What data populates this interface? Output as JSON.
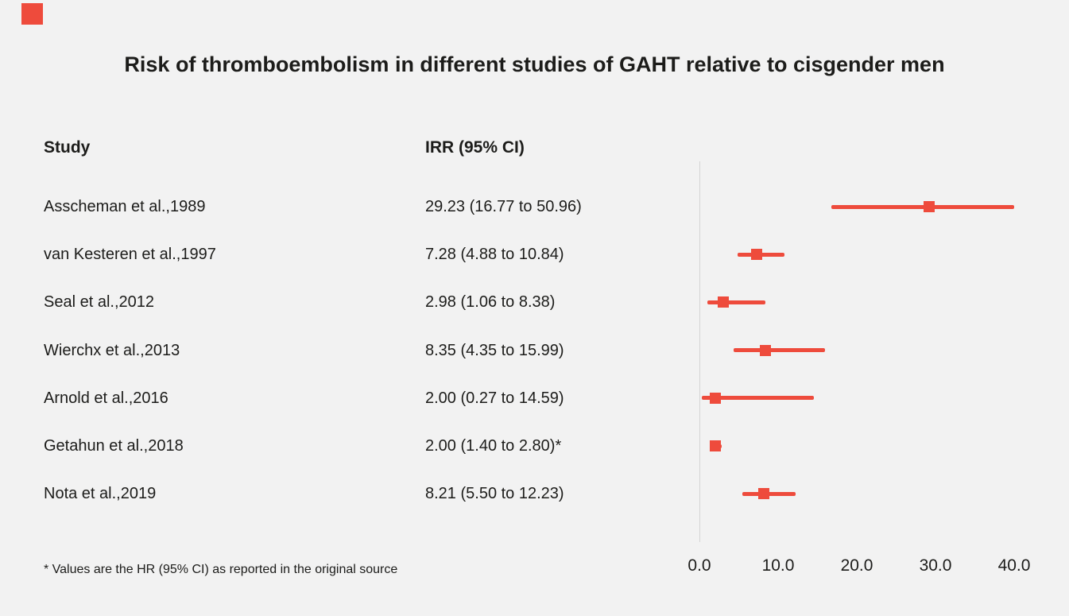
{
  "page": {
    "title": "Risk of thromboembolism in different studies of GAHT relative to cisgender men",
    "footnote": "* Values are the HR (95% CI) as reported in the original source"
  },
  "columns": {
    "study": "Study",
    "irr": "IRR (95% CI)"
  },
  "colors": {
    "accent": "#ee4b3c",
    "background": "#f2f2f2",
    "text": "#1c1c1a",
    "axis": "#d4d4d4"
  },
  "chart_data": {
    "type": "scatter",
    "subtype": "forest-plot",
    "title": "Risk of thromboembolism in different studies of GAHT relative to cisgender men",
    "xlabel": "",
    "ylabel": "",
    "xlim": [
      0,
      40
    ],
    "xticks": [
      0,
      10,
      20,
      30,
      40
    ],
    "xtick_labels": [
      "0.0",
      "10.0",
      "20.0",
      "30.0",
      "40.0"
    ],
    "grid": false,
    "legend": "none",
    "studies": [
      {
        "label": "Asscheman et al.,1989",
        "irr_text": "29.23 (16.77 to 50.96)",
        "estimate": 29.23,
        "ci_low": 16.77,
        "ci_high": 50.96
      },
      {
        "label": "van Kesteren et al.,1997",
        "irr_text": "7.28 (4.88 to 10.84)",
        "estimate": 7.28,
        "ci_low": 4.88,
        "ci_high": 10.84
      },
      {
        "label": "Seal et al.,2012",
        "irr_text": "2.98 (1.06 to 8.38)",
        "estimate": 2.98,
        "ci_low": 1.06,
        "ci_high": 8.38
      },
      {
        "label": "Wierchx et al.,2013",
        "irr_text": "8.35 (4.35 to 15.99)",
        "estimate": 8.35,
        "ci_low": 4.35,
        "ci_high": 15.99
      },
      {
        "label": "Arnold et al.,2016",
        "irr_text": "2.00 (0.27 to 14.59)",
        "estimate": 2.0,
        "ci_low": 0.27,
        "ci_high": 14.59
      },
      {
        "label": "Getahun et al.,2018",
        "irr_text": "2.00 (1.40 to 2.80)*",
        "estimate": 2.0,
        "ci_low": 1.4,
        "ci_high": 2.8
      },
      {
        "label": "Nota et al.,2019",
        "irr_text": "8.21 (5.50 to 12.23)",
        "estimate": 8.21,
        "ci_low": 5.5,
        "ci_high": 12.23
      }
    ]
  }
}
